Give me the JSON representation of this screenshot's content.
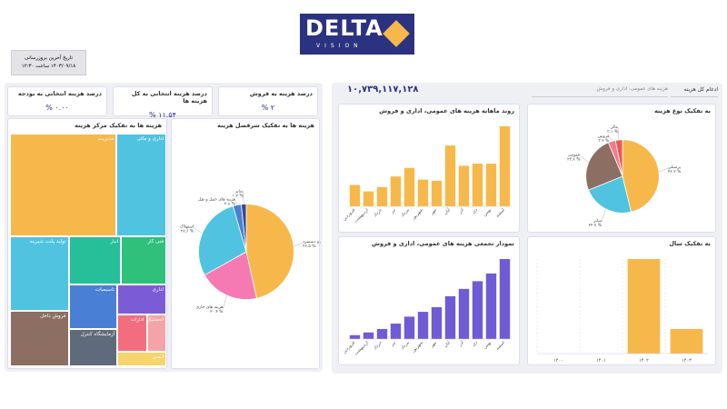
{
  "header": {
    "logo": "DELTA",
    "logo_sub": "VISION",
    "update_label": "تاریخ آخرین بروزرسانی",
    "update_value": "۱۴۰۳/۰۹/۱۸ ساعت ۱۲:۳۰"
  },
  "kpis": [
    {
      "label": "درصد هزینه به فروش",
      "value": "۲ %"
    },
    {
      "label": "درصد هزینه انتخابی به کل هزینه ها",
      "value": "۱۱.۵۴ %"
    },
    {
      "label": "درصد هزینه انتخابی به بودجه",
      "value": "۰.۰۰ %"
    }
  ],
  "filters": {
    "total": "۱۰,۷۳۹,۱۱۷,۱۲۸",
    "account": "هزینه های عمومی، اداری و فروش",
    "scope": "ادغام کل هزینه"
  },
  "chart_data": [
    {
      "type": "treemap",
      "title": "هزینه ها به تفکیک مرکز هزینه",
      "categories": [
        "مدیریت",
        "اداری و مالی",
        "تولید پلنت شیرینه",
        "فروش داخل",
        "انبار",
        "فنی کار",
        "تاسیسات",
        "آزمایشگاه کنترل",
        "اداری",
        "ادارات",
        "لجستیک",
        "ایمنی"
      ],
      "values": [
        30,
        14,
        12,
        9,
        7,
        6,
        6,
        5,
        4,
        3,
        2,
        2
      ],
      "colors": [
        "#f7b84b",
        "#4fc3e0",
        "#4fc3e0",
        "#8d6e63",
        "#26bf99",
        "#2fc07c",
        "#4a7fd6",
        "#5f6b7a",
        "#7c5cd6",
        "#f26d7d",
        "#f4a3a8",
        "#f7d36b"
      ]
    },
    {
      "type": "pie",
      "title": "هزینه ها به تفکیک سرفصل هزینه",
      "categories": [
        "حقوق و دستمزد",
        "هزینه های جاری",
        "استهلاک",
        "هزینه های حمل و نقل",
        "سایر"
      ],
      "values": [
        46.5,
        20.4,
        28.6,
        2.8,
        1.7
      ],
      "value_labels": [
        "۴۶.۵ %",
        "۲۰.۴ %",
        "۲۸.۶ %",
        "۲.۸ %",
        "۱.۷ %"
      ],
      "colors": [
        "#f7b84b",
        "#f57ab3",
        "#4fc3e0",
        "#4a7fd6",
        "#3b4a8f"
      ]
    },
    {
      "type": "bar",
      "title": "روند ماهانه هزینه های عمومی، اداری و فروش",
      "categories": [
        "فروردین",
        "اردیبهشت",
        "خرداد",
        "تیر",
        "مرداد",
        "شهریور",
        "مهر",
        "آبان",
        "آذر",
        "دی",
        "بهمن",
        "اسفند"
      ],
      "values": [
        20,
        14,
        18,
        28,
        36,
        25,
        24,
        57,
        38,
        40,
        40,
        75
      ],
      "color": "#f7b84b"
    },
    {
      "type": "pie",
      "title": "به تفکیک نوع هزینه",
      "categories": [
        "پرسنلی",
        "سایر",
        "عمومی",
        "فروش",
        "مالی"
      ],
      "values": [
        46.2,
        22.7,
        24.8,
        3.2,
        3.1
      ],
      "value_labels": [
        "۴۶.۲ %",
        "۲۲.۷ %",
        "۲۴.۸ %",
        "۳.۲ %",
        "۳.۱ %"
      ],
      "colors": [
        "#f7b84b",
        "#4fc3e0",
        "#8d6e63",
        "#f57a8a",
        "#e85a5a"
      ]
    },
    {
      "type": "bar",
      "title": "نمودار تجمعی هزینه های عمومی، اداری و فروش",
      "categories": [
        "فروردین",
        "اردیبهشت",
        "خرداد",
        "تیر",
        "مرداد",
        "شهریور",
        "مهر",
        "آبان",
        "آذر",
        "دی",
        "بهمن",
        "اسفند"
      ],
      "values": [
        20,
        34,
        52,
        80,
        116,
        141,
        165,
        222,
        260,
        300,
        340,
        415
      ],
      "color": "#6f5bd6"
    },
    {
      "type": "bar",
      "title": "به تفکیک سال",
      "categories": [
        "۱۴۰۰",
        "۱۴۰۱",
        "۱۴۰۲",
        "۱۴۰۳"
      ],
      "values": [
        null,
        null,
        100,
        26
      ],
      "color": "#f7b84b",
      "flat_labels": true
    }
  ]
}
